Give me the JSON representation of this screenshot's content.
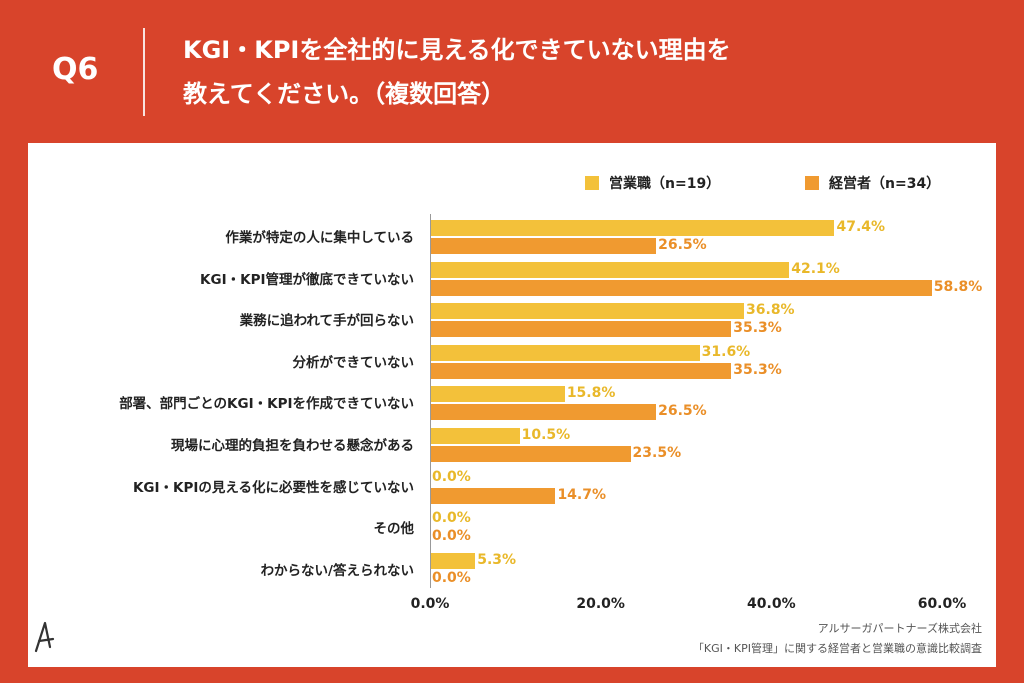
{
  "header": {
    "qnum": "Q6",
    "title_line1": "KGI・KPIを全社的に見える化できていない理由を",
    "title_line2": "教えてください。（複数回答）"
  },
  "colors": {
    "background": "#d8442b",
    "sales": "#f3c13a",
    "managers": "#f09a30"
  },
  "legend": {
    "sales": "営業職（n=19）",
    "managers": "経営者（n=34）"
  },
  "chart_data": {
    "type": "bar",
    "orientation": "horizontal",
    "title": "KGI・KPIを全社的に見える化できていない理由を教えてください。（複数回答）",
    "categories": [
      "作業が特定の人に集中している",
      "KGI・KPI管理が徹底できていない",
      "業務に追われて手が回らない",
      "分析ができていない",
      "部署、部門ごとのKGI・KPIを作成できていない",
      "現場に心理的負担を負わせる懸念がある",
      "KGI・KPIの見える化に必要性を感じていない",
      "その他",
      "わからない/答えられない"
    ],
    "series": [
      {
        "name": "営業職（n=19）",
        "values": [
          47.4,
          42.1,
          36.8,
          31.6,
          15.8,
          10.5,
          0.0,
          0.0,
          5.3
        ],
        "labels": [
          "47.4%",
          "42.1%",
          "36.8%",
          "31.6%",
          "15.8%",
          "10.5%",
          "0.0%",
          "0.0%",
          "5.3%"
        ]
      },
      {
        "name": "経営者（n=34）",
        "values": [
          26.5,
          58.8,
          35.3,
          35.3,
          26.5,
          23.5,
          14.7,
          0.0,
          0.0
        ],
        "labels": [
          "26.5%",
          "58.8%",
          "35.3%",
          "35.3%",
          "26.5%",
          "23.5%",
          "14.7%",
          "0.0%",
          "0.0%"
        ]
      }
    ],
    "xticks": [
      "0.0%",
      "20.0%",
      "40.0%",
      "60.0%"
    ],
    "xtick_values": [
      0,
      20,
      40,
      60
    ],
    "xlim": [
      0,
      60
    ],
    "xlabel": "",
    "ylabel": "",
    "legend_position": "top-right",
    "grid": false
  },
  "footer": {
    "company": "アルサーガパートナーズ株式会社",
    "survey": "「KGI・KPI管理」に関する経営者と営業職の意識比較調査"
  }
}
